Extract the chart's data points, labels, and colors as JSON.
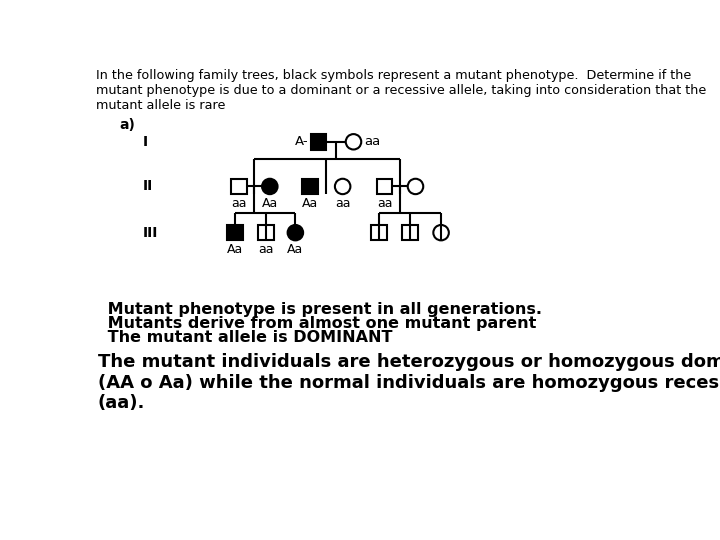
{
  "title_text": "In the following family trees, black symbols represent a mutant phenotype.  Determine if the\nmutant phenotype is due to a dominant or a recessive allele, taking into consideration that the\nmutant allele is rare",
  "label_a": "a)",
  "gen_labels": [
    "I",
    "II",
    "III"
  ],
  "background": "#ffffff",
  "text_color": "#000000",
  "conclusion_lines": [
    " Mutant phenotype is present in all generations.",
    " Mutants derive from almost one mutant parent",
    " The mutant allele is DOMINANT",
    "The mutant individuals are heterozygous or homozygous dominant\n(AA o Aa) while the normal individuals are homozygous recessive\n(aa)."
  ]
}
